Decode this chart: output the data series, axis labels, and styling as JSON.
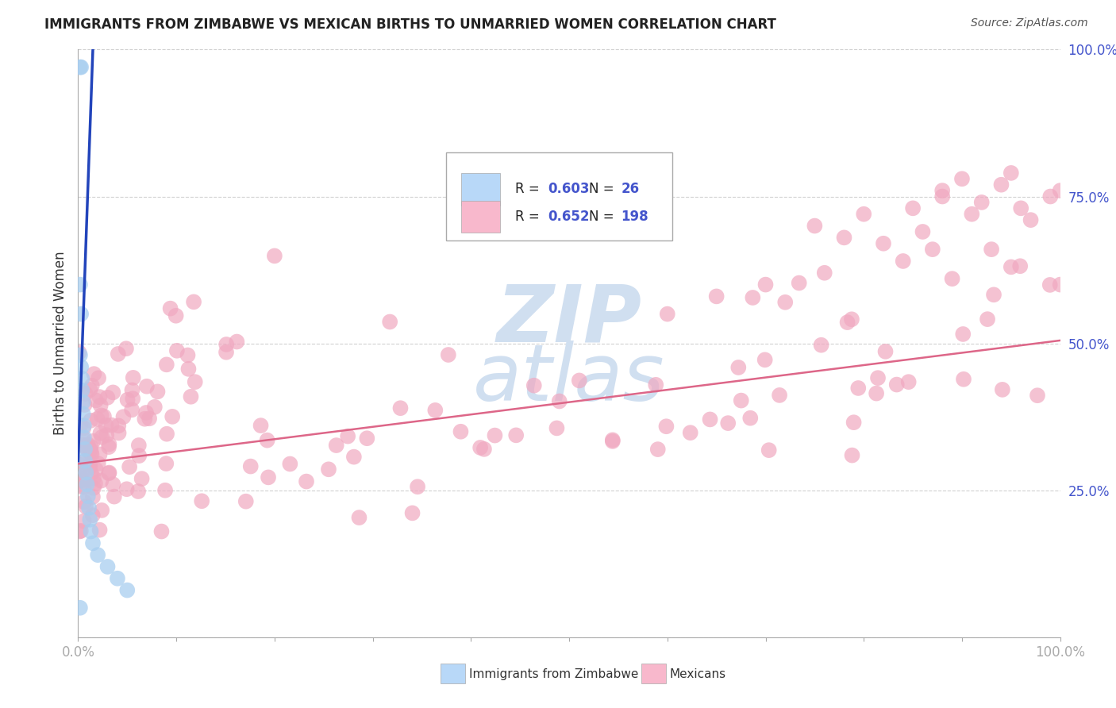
{
  "title": "IMMIGRANTS FROM ZIMBABWE VS MEXICAN BIRTHS TO UNMARRIED WOMEN CORRELATION CHART",
  "source": "Source: ZipAtlas.com",
  "ylabel": "Births to Unmarried Women",
  "ytick_values": [
    0.0,
    0.25,
    0.5,
    0.75,
    1.0
  ],
  "ytick_labels": [
    "",
    "25.0%",
    "50.0%",
    "75.0%",
    "100.0%"
  ],
  "xtick_values": [
    0.0,
    0.1,
    0.2,
    0.3,
    0.4,
    0.5,
    0.6,
    0.7,
    0.8,
    0.9,
    1.0
  ],
  "xlim": [
    0.0,
    1.0
  ],
  "ylim": [
    0.0,
    1.0
  ],
  "background_color": "#ffffff",
  "grid_color": "#cccccc",
  "blue_scatter_color": "#a8cef0",
  "pink_scatter_color": "#f0a8c0",
  "blue_line_color": "#2244bb",
  "pink_line_color": "#dd6688",
  "ytick_label_color": "#4455cc",
  "xtick_label_color": "#4455cc",
  "watermark_color": "#d0dff0",
  "legend_blue_fill": "#b8d8f8",
  "legend_pink_fill": "#f8b8cc",
  "legend_border": "#cccccc",
  "blue_r": "0.603",
  "blue_n": "26",
  "pink_r": "0.652",
  "pink_n": "198",
  "blue_label": "Immigrants from Zimbabwe",
  "pink_label": "Mexicans",
  "blue_line_x0": 0.0,
  "blue_line_y0": 0.3,
  "blue_line_x1": 0.015,
  "blue_line_y1": 1.0,
  "pink_line_x0": 0.0,
  "pink_line_y0": 0.295,
  "pink_line_x1": 1.0,
  "pink_line_y1": 0.505
}
